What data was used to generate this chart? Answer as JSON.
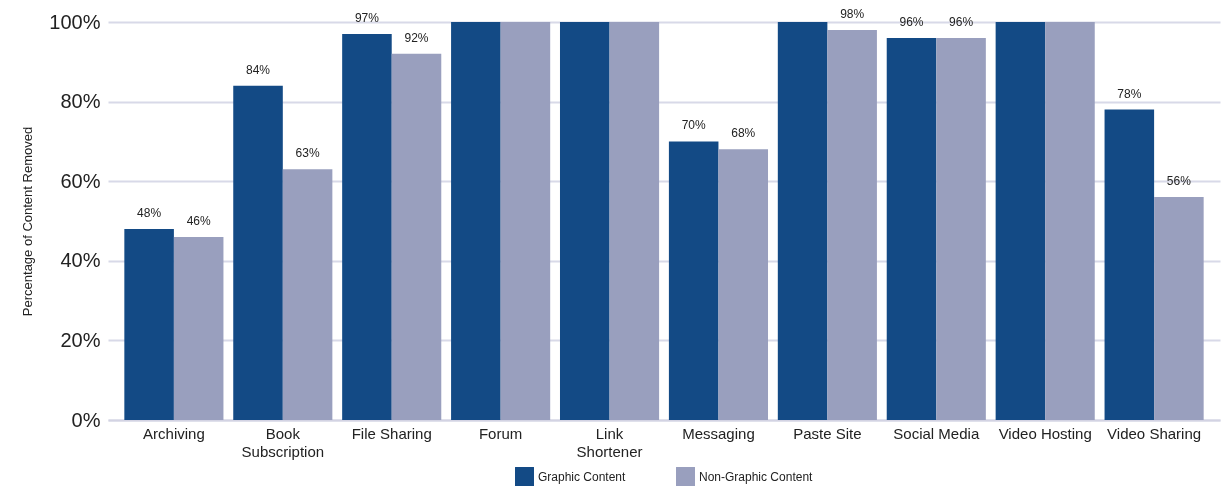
{
  "chart_data": {
    "type": "bar",
    "ylabel": "Percentage of Content Removed",
    "categories": [
      "Archiving",
      "Book Subscription",
      "File Sharing",
      "Forum",
      "Link Shortener",
      "Messaging",
      "Paste Site",
      "Social Media",
      "Video Hosting",
      "Video Sharing"
    ],
    "series": [
      {
        "name": "Graphic Content",
        "color": "#134a85",
        "values": [
          48,
          84,
          97,
          100,
          100,
          70,
          100,
          96,
          100,
          78
        ],
        "value_labels": [
          "48%",
          "84%",
          "97%",
          null,
          null,
          "70%",
          null,
          "96%",
          null,
          "78%"
        ]
      },
      {
        "name": "Non-Graphic Content",
        "color": "#999fbe",
        "values": [
          46,
          63,
          92,
          100,
          100,
          68,
          98,
          96,
          100,
          56
        ],
        "value_labels": [
          "46%",
          "63%",
          "92%",
          null,
          null,
          "68%",
          "98%",
          "96%",
          null,
          "56%"
        ]
      }
    ],
    "ylim": [
      0,
      100
    ],
    "yticks": [
      {
        "value": 0,
        "label": "0%"
      },
      {
        "value": 20,
        "label": "20%"
      },
      {
        "value": 40,
        "label": "40%"
      },
      {
        "value": 60,
        "label": "60%"
      },
      {
        "value": 80,
        "label": "80%"
      },
      {
        "value": 100,
        "label": "100%"
      }
    ],
    "grid": "y",
    "legend": "bottom"
  }
}
